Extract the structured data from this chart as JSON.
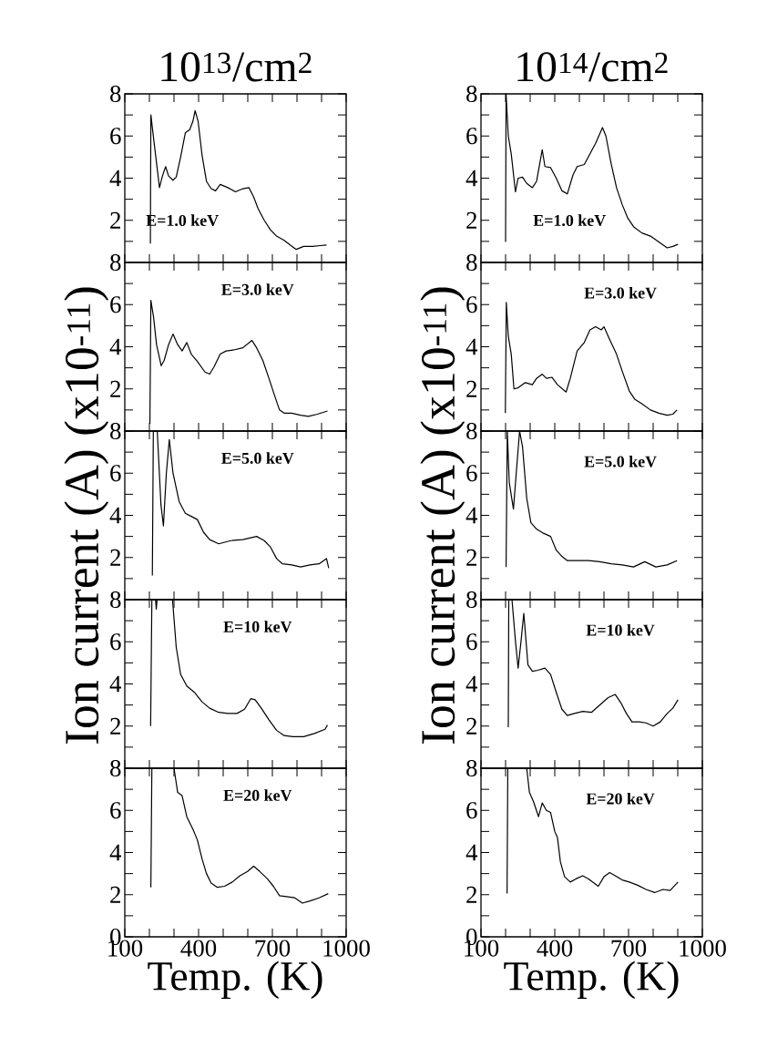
{
  "chart_data": [
    {
      "type": "line",
      "title": "10$^{13}$/cm$^{2}$",
      "annotations": [
        "E=1.0 keV"
      ],
      "color": "#000000",
      "xlim": [
        100,
        1000
      ],
      "ylim": [
        0,
        8
      ],
      "tick_labels": "y",
      "xticks": [
        100,
        {
          "value": 200,
          "label": null
        },
        {
          "value": 300,
          "label": null
        },
        400,
        {
          "value": 500,
          "label": null
        },
        {
          "value": 600,
          "label": null
        },
        700,
        {
          "value": 800,
          "label": null
        },
        {
          "value": 900,
          "label": null
        },
        1000
      ],
      "yticks": [
        {
          "value": 1,
          "label": null
        },
        2,
        {
          "value": 3,
          "label": null
        },
        4,
        {
          "value": 5,
          "label": null
        },
        6,
        {
          "value": 7,
          "label": null
        },
        8
      ],
      "x": [
        204,
        206,
        222,
        241,
        253,
        266,
        278,
        296,
        309,
        327,
        346,
        364,
        377,
        386,
        398,
        414,
        432,
        451,
        469,
        488,
        519,
        550,
        580,
        605,
        624,
        642,
        667,
        692,
        717,
        748,
        772,
        797,
        827,
        864,
        895,
        920
      ],
      "values": [
        0.9,
        7.0,
        5.4,
        3.55,
        4.1,
        4.55,
        4.1,
        3.9,
        4.05,
        5.0,
        6.15,
        6.3,
        6.7,
        7.2,
        6.7,
        5.1,
        3.85,
        3.5,
        3.4,
        3.7,
        3.55,
        3.35,
        3.5,
        3.55,
        3.1,
        2.55,
        2.0,
        1.55,
        1.25,
        1.05,
        0.83,
        0.62,
        0.76,
        0.76,
        0.8,
        0.83
      ]
    },
    {
      "type": "line",
      "annotations": [
        "E=3.0 keV"
      ],
      "color": "#000000",
      "xlim": [
        100,
        1000
      ],
      "ylim": [
        0,
        8
      ],
      "tick_labels": "y",
      "xticks": [
        100,
        {
          "value": 200,
          "label": null
        },
        {
          "value": 300,
          "label": null
        },
        400,
        {
          "value": 500,
          "label": null
        },
        {
          "value": 600,
          "label": null
        },
        700,
        {
          "value": 800,
          "label": null
        },
        {
          "value": 900,
          "label": null
        },
        1000
      ],
      "yticks": [
        {
          "value": 1,
          "label": null
        },
        2,
        {
          "value": 3,
          "label": null
        },
        4,
        {
          "value": 5,
          "label": null
        },
        6,
        {
          "value": 7,
          "label": null
        },
        8
      ],
      "x": [
        202,
        206,
        217,
        229,
        248,
        260,
        278,
        296,
        315,
        333,
        352,
        370,
        395,
        426,
        445,
        463,
        488,
        512,
        543,
        580,
        617,
        636,
        661,
        686,
        710,
        729,
        748,
        778,
        815,
        846,
        883,
        924
      ],
      "values": [
        0.35,
        6.2,
        5.4,
        4.1,
        3.1,
        3.35,
        4.1,
        4.6,
        4.1,
        3.8,
        4.2,
        3.65,
        3.3,
        2.8,
        2.7,
        3.05,
        3.65,
        3.8,
        3.85,
        3.95,
        4.3,
        3.95,
        3.35,
        2.5,
        1.65,
        1.0,
        0.85,
        0.85,
        0.75,
        0.7,
        0.8,
        0.95
      ]
    },
    {
      "type": "line",
      "ylabel": "Ion current (A)   (x10$^{-11}$)",
      "annotations": [
        "E=5.0 keV"
      ],
      "color": "#000000",
      "xlim": [
        100,
        1000
      ],
      "ylim": [
        0,
        8
      ],
      "tick_labels": "y",
      "xticks": [
        100,
        {
          "value": 200,
          "label": null
        },
        {
          "value": 300,
          "label": null
        },
        400,
        {
          "value": 500,
          "label": null
        },
        {
          "value": 600,
          "label": null
        },
        700,
        {
          "value": 800,
          "label": null
        },
        {
          "value": 900,
          "label": null
        },
        1000
      ],
      "yticks": [
        {
          "value": 1,
          "label": null
        },
        2,
        {
          "value": 3,
          "label": null
        },
        4,
        {
          "value": 5,
          "label": null
        },
        6,
        {
          "value": 7,
          "label": null
        },
        8
      ],
      "x": [
        212,
        216,
        232,
        247,
        257,
        269,
        281,
        296,
        321,
        346,
        370,
        395,
        420,
        445,
        482,
        531,
        580,
        636,
        667,
        692,
        717,
        741,
        778,
        815,
        853,
        890,
        920,
        929
      ],
      "values": [
        1.15,
        8,
        8,
        4.5,
        3.5,
        6.0,
        7.6,
        6.0,
        4.65,
        4.1,
        3.95,
        3.8,
        3.2,
        2.85,
        2.65,
        2.8,
        2.85,
        3.0,
        2.8,
        2.5,
        1.95,
        1.7,
        1.65,
        1.55,
        1.65,
        1.7,
        1.95,
        1.5
      ]
    },
    {
      "type": "line",
      "annotations": [
        "E=10 keV"
      ],
      "color": "#000000",
      "xlim": [
        100,
        1000
      ],
      "ylim": [
        0,
        8
      ],
      "tick_labels": "y",
      "xticks": [
        100,
        {
          "value": 200,
          "label": null
        },
        {
          "value": 300,
          "label": null
        },
        400,
        {
          "value": 500,
          "label": null
        },
        {
          "value": 600,
          "label": null
        },
        700,
        {
          "value": 800,
          "label": null
        },
        {
          "value": 900,
          "label": null
        },
        1000
      ],
      "yticks": [
        {
          "value": 1,
          "label": null
        },
        2,
        {
          "value": 3,
          "label": null
        },
        4,
        {
          "value": 5,
          "label": null
        },
        6,
        {
          "value": 7,
          "label": null
        },
        8
      ],
      "x": [
        205,
        210,
        225,
        228,
        231,
        235,
        294,
        309,
        327,
        352,
        383,
        414,
        445,
        482,
        519,
        556,
        587,
        612,
        630,
        655,
        686,
        717,
        748,
        784,
        827,
        871,
        914,
        924
      ],
      "values": [
        2.0,
        8,
        8,
        7.55,
        8,
        8,
        8,
        5.75,
        4.45,
        3.9,
        3.6,
        3.15,
        2.85,
        2.65,
        2.6,
        2.6,
        2.8,
        3.3,
        3.25,
        2.85,
        2.3,
        1.8,
        1.55,
        1.5,
        1.5,
        1.65,
        1.85,
        2.05
      ]
    },
    {
      "type": "line",
      "xlabel": "Temp. (K)",
      "annotations": [
        "E=20 keV"
      ],
      "color": "#000000",
      "xlim": [
        100,
        1000
      ],
      "ylim": [
        0,
        8
      ],
      "xticks": [
        100,
        {
          "value": 200,
          "label": null
        },
        {
          "value": 300,
          "label": null
        },
        400,
        {
          "value": 500,
          "label": null
        },
        {
          "value": 600,
          "label": null
        },
        700,
        {
          "value": 800,
          "label": null
        },
        {
          "value": 900,
          "label": null
        },
        1000
      ],
      "yticks": [
        0,
        {
          "value": 1,
          "label": null
        },
        2,
        {
          "value": 3,
          "label": null
        },
        4,
        {
          "value": 5,
          "label": null
        },
        6,
        {
          "value": 7,
          "label": null
        },
        8
      ],
      "x": [
        206,
        210,
        300,
        315,
        333,
        352,
        377,
        395,
        414,
        432,
        451,
        476,
        506,
        537,
        568,
        599,
        624,
        649,
        680,
        704,
        729,
        760,
        791,
        822,
        853,
        890,
        927
      ],
      "values": [
        2.35,
        8,
        8,
        6.85,
        6.7,
        5.7,
        5.1,
        4.6,
        3.7,
        3.0,
        2.55,
        2.35,
        2.4,
        2.6,
        2.9,
        3.1,
        3.35,
        3.1,
        2.75,
        2.4,
        1.95,
        1.9,
        1.85,
        1.6,
        1.7,
        1.85,
        2.05
      ]
    },
    {
      "type": "line",
      "title": "10$^{14}$/cm$^{2}$",
      "annotations": [
        "E=1.0 keV"
      ],
      "color": "#000000",
      "xlim": [
        100,
        1000
      ],
      "ylim": [
        0,
        8
      ],
      "tick_labels": "y",
      "xticks": [
        100,
        {
          "value": 200,
          "label": null
        },
        {
          "value": 300,
          "label": null
        },
        400,
        {
          "value": 500,
          "label": null
        },
        {
          "value": 600,
          "label": null
        },
        700,
        {
          "value": 800,
          "label": null
        },
        {
          "value": 900,
          "label": null
        },
        1000
      ],
      "yticks": [
        {
          "value": 1,
          "label": null
        },
        2,
        {
          "value": 3,
          "label": null
        },
        4,
        {
          "value": 5,
          "label": null
        },
        6,
        {
          "value": 7,
          "label": null
        },
        8
      ],
      "x": [
        200,
        202,
        211,
        223,
        240,
        251,
        269,
        286,
        309,
        326,
        349,
        360,
        383,
        406,
        429,
        451,
        474,
        491,
        520,
        543,
        566,
        594,
        608,
        629,
        651,
        674,
        697,
        720,
        754,
        789,
        823,
        857,
        880,
        901
      ],
      "values": [
        0.97,
        8,
        6.0,
        5.15,
        3.35,
        4.0,
        4.05,
        3.75,
        3.55,
        3.85,
        5.35,
        4.55,
        4.5,
        4.0,
        3.4,
        3.25,
        4.15,
        4.55,
        4.65,
        5.15,
        5.65,
        6.4,
        6.0,
        4.7,
        3.55,
        2.75,
        2.1,
        1.7,
        1.4,
        1.25,
        0.97,
        0.69,
        0.76,
        0.86
      ]
    },
    {
      "type": "line",
      "annotations": [
        "E=3.0 keV"
      ],
      "color": "#000000",
      "xlim": [
        100,
        1000
      ],
      "ylim": [
        0,
        8
      ],
      "tick_labels": "y",
      "xticks": [
        100,
        {
          "value": 200,
          "label": null
        },
        {
          "value": 300,
          "label": null
        },
        400,
        {
          "value": 500,
          "label": null
        },
        {
          "value": 600,
          "label": null
        },
        700,
        {
          "value": 800,
          "label": null
        },
        {
          "value": 900,
          "label": null
        },
        1000
      ],
      "yticks": [
        {
          "value": 1,
          "label": null
        },
        2,
        {
          "value": 3,
          "label": null
        },
        4,
        {
          "value": 5,
          "label": null
        },
        6,
        {
          "value": 7,
          "label": null
        },
        8
      ],
      "x": [
        199,
        203,
        211,
        223,
        234,
        251,
        280,
        309,
        326,
        349,
        366,
        389,
        411,
        446,
        463,
        491,
        520,
        543,
        566,
        589,
        600,
        623,
        651,
        674,
        703,
        726,
        754,
        789,
        823,
        857,
        880,
        897
      ],
      "values": [
        0.85,
        6.1,
        4.5,
        3.65,
        2.0,
        2.05,
        2.3,
        2.2,
        2.5,
        2.7,
        2.5,
        2.55,
        2.2,
        1.85,
        2.5,
        3.8,
        4.2,
        4.8,
        4.95,
        4.8,
        4.95,
        4.35,
        3.65,
        2.85,
        1.9,
        1.5,
        1.3,
        1.0,
        0.85,
        0.75,
        0.8,
        1.0
      ]
    },
    {
      "type": "line",
      "ylabel": "Ion current (A)   (x10$^{-11}$)",
      "annotations": [
        "E=5.0 keV"
      ],
      "color": "#000000",
      "xlim": [
        100,
        1000
      ],
      "ylim": [
        0,
        8
      ],
      "tick_labels": "y",
      "xticks": [
        100,
        {
          "value": 200,
          "label": null
        },
        {
          "value": 300,
          "label": null
        },
        400,
        {
          "value": 500,
          "label": null
        },
        {
          "value": 600,
          "label": null
        },
        700,
        {
          "value": 800,
          "label": null
        },
        {
          "value": 900,
          "label": null
        },
        1000
      ],
      "yticks": [
        {
          "value": 1,
          "label": null
        },
        2,
        {
          "value": 3,
          "label": null
        },
        4,
        {
          "value": 5,
          "label": null
        },
        6,
        {
          "value": 7,
          "label": null
        },
        8
      ],
      "x": [
        202,
        207,
        215,
        232,
        246,
        257,
        269,
        286,
        303,
        326,
        354,
        383,
        406,
        429,
        451,
        491,
        537,
        583,
        629,
        674,
        720,
        766,
        811,
        857,
        897
      ],
      "values": [
        1.55,
        8,
        5.55,
        4.3,
        6.4,
        8,
        7.25,
        4.8,
        3.65,
        3.35,
        3.15,
        3.0,
        2.35,
        2.05,
        1.85,
        1.85,
        1.85,
        1.8,
        1.7,
        1.65,
        1.55,
        1.8,
        1.55,
        1.65,
        1.85
      ]
    },
    {
      "type": "line",
      "annotations": [
        "E=10 keV"
      ],
      "color": "#000000",
      "xlim": [
        100,
        1000
      ],
      "ylim": [
        0,
        8
      ],
      "tick_labels": "y",
      "xticks": [
        100,
        {
          "value": 200,
          "label": null
        },
        {
          "value": 300,
          "label": null
        },
        400,
        {
          "value": 500,
          "label": null
        },
        {
          "value": 600,
          "label": null
        },
        700,
        {
          "value": 800,
          "label": null
        },
        {
          "value": 900,
          "label": null
        },
        1000
      ],
      "yticks": [
        {
          "value": 1,
          "label": null
        },
        2,
        {
          "value": 3,
          "label": null
        },
        4,
        {
          "value": 5,
          "label": null
        },
        6,
        {
          "value": 7,
          "label": null
        },
        8
      ],
      "x": [
        211,
        213,
        226,
        240,
        251,
        263,
        274,
        291,
        309,
        331,
        360,
        383,
        406,
        429,
        451,
        480,
        514,
        549,
        583,
        617,
        646,
        669,
        691,
        714,
        743,
        771,
        800,
        829,
        857,
        880,
        901
      ],
      "values": [
        1.95,
        8,
        8,
        6.05,
        4.75,
        6.05,
        7.35,
        4.9,
        4.6,
        4.65,
        4.75,
        4.45,
        3.6,
        2.8,
        2.5,
        2.6,
        2.7,
        2.65,
        3.0,
        3.35,
        3.5,
        3.1,
        2.6,
        2.2,
        2.2,
        2.15,
        2.0,
        2.2,
        2.6,
        2.85,
        3.25
      ]
    },
    {
      "type": "line",
      "xlabel": "Temp. (K)",
      "annotations": [
        "E=20 keV"
      ],
      "color": "#000000",
      "xlim": [
        100,
        1000
      ],
      "ylim": [
        0,
        8
      ],
      "xticks": [
        100,
        {
          "value": 200,
          "label": null
        },
        {
          "value": 300,
          "label": null
        },
        400,
        {
          "value": 500,
          "label": null
        },
        {
          "value": 600,
          "label": null
        },
        700,
        {
          "value": 800,
          "label": null
        },
        {
          "value": 900,
          "label": null
        },
        1000
      ],
      "yticks": [
        0,
        {
          "value": 1,
          "label": null
        },
        2,
        {
          "value": 3,
          "label": null
        },
        4,
        {
          "value": 5,
          "label": null
        },
        6,
        {
          "value": 7,
          "label": null
        },
        8
      ],
      "x": [
        206,
        209,
        286,
        297,
        314,
        334,
        349,
        366,
        383,
        400,
        411,
        423,
        440,
        463,
        486,
        514,
        537,
        577,
        600,
        623,
        646,
        674,
        703,
        737,
        771,
        806,
        840,
        869,
        901
      ],
      "values": [
        2.05,
        8,
        8,
        6.85,
        6.4,
        5.7,
        6.35,
        6.0,
        5.9,
        5.0,
        4.7,
        3.55,
        2.85,
        2.6,
        2.75,
        2.9,
        2.75,
        2.4,
        2.85,
        3.05,
        2.9,
        2.7,
        2.6,
        2.45,
        2.25,
        2.1,
        2.25,
        2.2,
        2.6
      ]
    }
  ]
}
